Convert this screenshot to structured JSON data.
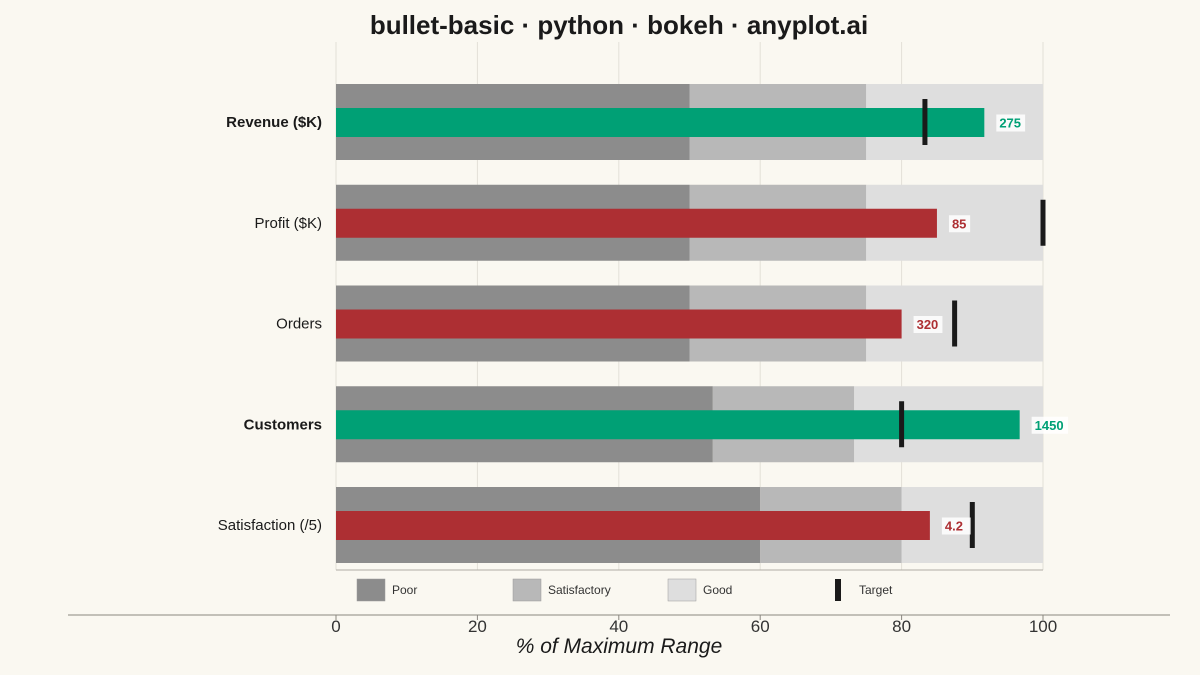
{
  "chart_data": {
    "type": "bullet",
    "title": "bullet-basic · python · bokeh · anyplot.ai",
    "xlabel": "% of Maximum Range",
    "xlim": [
      0,
      100
    ],
    "xticks": [
      0,
      20,
      40,
      60,
      80,
      100
    ],
    "grid": true,
    "legend_position": "bottom",
    "colors": {
      "poor": "#8c8c8c",
      "satisfactory": "#b8b8b8",
      "good": "#dedede",
      "above_target": "#00a075",
      "below_target": "#ad2f33",
      "target": "#1a1a1a"
    },
    "legend": [
      {
        "label": "Poor",
        "color": "#8c8c8c",
        "kind": "swatch"
      },
      {
        "label": "Satisfactory",
        "color": "#b8b8b8",
        "kind": "swatch"
      },
      {
        "label": "Good",
        "color": "#dedede",
        "kind": "swatch"
      },
      {
        "label": "Target",
        "color": "#1a1a1a",
        "kind": "marker"
      }
    ],
    "metrics": [
      {
        "label": "Revenue ($K)",
        "value_text": "275",
        "value_pct": 91.7,
        "target_pct": 83.3,
        "ranges_pct": [
          50,
          75,
          100
        ],
        "above_target": true
      },
      {
        "label": "Profit ($K)",
        "value_text": "85",
        "value_pct": 85,
        "target_pct": 100,
        "ranges_pct": [
          50,
          75,
          100
        ],
        "above_target": false
      },
      {
        "label": "Orders",
        "value_text": "320",
        "value_pct": 80,
        "target_pct": 87.5,
        "ranges_pct": [
          50,
          75,
          100
        ],
        "above_target": false
      },
      {
        "label": "Customers",
        "value_text": "1450",
        "value_pct": 96.7,
        "target_pct": 80,
        "ranges_pct": [
          53.3,
          73.3,
          100
        ],
        "above_target": true
      },
      {
        "label": "Satisfaction (/5)",
        "value_text": "4.2",
        "value_pct": 84,
        "target_pct": 90,
        "ranges_pct": [
          60,
          80,
          100
        ],
        "above_target": false
      }
    ]
  }
}
